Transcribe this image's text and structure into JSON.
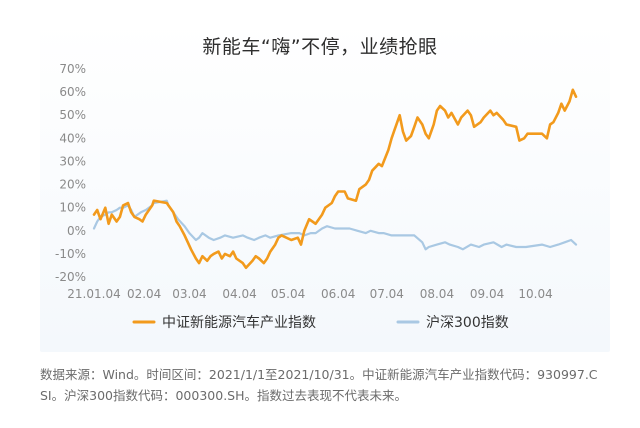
{
  "title": "新能车“嗨”不停，业绩抢眼",
  "source_note": "数据来源：Wind。时间区间：2021/1/1至2021/10/31。中证新能源汽车产业指数代码：930997.CSI。沪深300指数代码：000300.SH。指数过去表现不代表未来。",
  "colors": {
    "nev": "#f29a1c",
    "hs300": "#a9c8e3"
  },
  "chart_data": {
    "type": "line",
    "x_ticks": [
      "21.01.04",
      "02.04",
      "03.04",
      "04.04",
      "05.04",
      "06.04",
      "07.04",
      "08.04",
      "09.04",
      "10.04"
    ],
    "y_ticks": [
      "70%",
      "60%",
      "50%",
      "40%",
      "30%",
      "20%",
      "10%",
      "0%",
      "-10%",
      "-20%"
    ],
    "ylim": [
      -20,
      70
    ],
    "x_range": [
      "2021-01-04",
      "2021-10-29"
    ],
    "series": [
      {
        "name": "中证新能源汽车产业指数",
        "color": "#f29a1c",
        "points": [
          [
            "2021-01-04",
            7
          ],
          [
            "2021-01-06",
            9
          ],
          [
            "2021-01-08",
            5
          ],
          [
            "2021-01-11",
            10
          ],
          [
            "2021-01-13",
            3
          ],
          [
            "2021-01-15",
            7
          ],
          [
            "2021-01-18",
            4
          ],
          [
            "2021-01-20",
            6
          ],
          [
            "2021-01-22",
            11
          ],
          [
            "2021-01-25",
            12
          ],
          [
            "2021-01-27",
            8
          ],
          [
            "2021-01-29",
            6
          ],
          [
            "2021-02-01",
            5
          ],
          [
            "2021-02-03",
            4
          ],
          [
            "2021-02-05",
            7
          ],
          [
            "2021-02-09",
            11
          ],
          [
            "2021-02-10",
            13
          ],
          [
            "2021-02-18",
            12
          ],
          [
            "2021-02-19",
            11
          ],
          [
            "2021-02-22",
            8
          ],
          [
            "2021-02-24",
            4
          ],
          [
            "2021-02-26",
            2
          ],
          [
            "2021-03-01",
            -2
          ],
          [
            "2021-03-03",
            -5
          ],
          [
            "2021-03-05",
            -8
          ],
          [
            "2021-03-08",
            -12
          ],
          [
            "2021-03-10",
            -14
          ],
          [
            "2021-03-12",
            -11
          ],
          [
            "2021-03-15",
            -13
          ],
          [
            "2021-03-17",
            -11
          ],
          [
            "2021-03-19",
            -10
          ],
          [
            "2021-03-22",
            -9
          ],
          [
            "2021-03-24",
            -12
          ],
          [
            "2021-03-26",
            -10
          ],
          [
            "2021-03-29",
            -11
          ],
          [
            "2021-03-31",
            -9
          ],
          [
            "2021-04-02",
            -12
          ],
          [
            "2021-04-06",
            -14
          ],
          [
            "2021-04-08",
            -16
          ],
          [
            "2021-04-12",
            -13
          ],
          [
            "2021-04-14",
            -11
          ],
          [
            "2021-04-16",
            -12
          ],
          [
            "2021-04-19",
            -14
          ],
          [
            "2021-04-21",
            -12
          ],
          [
            "2021-04-23",
            -9
          ],
          [
            "2021-04-26",
            -6
          ],
          [
            "2021-04-28",
            -3
          ],
          [
            "2021-04-30",
            -2
          ],
          [
            "2021-05-06",
            -4
          ],
          [
            "2021-05-10",
            -3
          ],
          [
            "2021-05-12",
            -6
          ],
          [
            "2021-05-14",
            0
          ],
          [
            "2021-05-17",
            5
          ],
          [
            "2021-05-19",
            4
          ],
          [
            "2021-05-21",
            3
          ],
          [
            "2021-05-25",
            7
          ],
          [
            "2021-05-27",
            10
          ],
          [
            "2021-05-31",
            12
          ],
          [
            "2021-06-02",
            15
          ],
          [
            "2021-06-04",
            17
          ],
          [
            "2021-06-08",
            17
          ],
          [
            "2021-06-10",
            14
          ],
          [
            "2021-06-15",
            13
          ],
          [
            "2021-06-17",
            18
          ],
          [
            "2021-06-21",
            20
          ],
          [
            "2021-06-23",
            22
          ],
          [
            "2021-06-25",
            26
          ],
          [
            "2021-06-29",
            29
          ],
          [
            "2021-07-01",
            28
          ],
          [
            "2021-07-05",
            35
          ],
          [
            "2021-07-07",
            40
          ],
          [
            "2021-07-09",
            44
          ],
          [
            "2021-07-12",
            50
          ],
          [
            "2021-07-14",
            43
          ],
          [
            "2021-07-16",
            39
          ],
          [
            "2021-07-19",
            41
          ],
          [
            "2021-07-21",
            45
          ],
          [
            "2021-07-23",
            49
          ],
          [
            "2021-07-26",
            46
          ],
          [
            "2021-07-28",
            42
          ],
          [
            "2021-07-30",
            40
          ],
          [
            "2021-08-02",
            46
          ],
          [
            "2021-08-04",
            52
          ],
          [
            "2021-08-06",
            54
          ],
          [
            "2021-08-09",
            52
          ],
          [
            "2021-08-11",
            49
          ],
          [
            "2021-08-13",
            51
          ],
          [
            "2021-08-17",
            46
          ],
          [
            "2021-08-19",
            49
          ],
          [
            "2021-08-23",
            52
          ],
          [
            "2021-08-25",
            50
          ],
          [
            "2021-08-27",
            45
          ],
          [
            "2021-08-31",
            47
          ],
          [
            "2021-09-02",
            49
          ],
          [
            "2021-09-06",
            52
          ],
          [
            "2021-09-08",
            50
          ],
          [
            "2021-09-10",
            51
          ],
          [
            "2021-09-14",
            48
          ],
          [
            "2021-09-16",
            46
          ],
          [
            "2021-09-22",
            45
          ],
          [
            "2021-09-24",
            39
          ],
          [
            "2021-09-27",
            40
          ],
          [
            "2021-09-29",
            42
          ],
          [
            "2021-10-08",
            42
          ],
          [
            "2021-10-11",
            40
          ],
          [
            "2021-10-13",
            46
          ],
          [
            "2021-10-15",
            47
          ],
          [
            "2021-10-18",
            51
          ],
          [
            "2021-10-20",
            55
          ],
          [
            "2021-10-22",
            52
          ],
          [
            "2021-10-25",
            56
          ],
          [
            "2021-10-27",
            61
          ],
          [
            "2021-10-29",
            58
          ]
        ]
      },
      {
        "name": "沪深300指数",
        "color": "#a9c8e3",
        "points": [
          [
            "2021-01-04",
            1
          ],
          [
            "2021-01-06",
            4
          ],
          [
            "2021-01-08",
            6
          ],
          [
            "2021-01-11",
            7
          ],
          [
            "2021-01-13",
            8
          ],
          [
            "2021-01-15",
            8
          ],
          [
            "2021-01-18",
            9
          ],
          [
            "2021-01-20",
            10
          ],
          [
            "2021-01-22",
            10
          ],
          [
            "2021-01-25",
            11
          ],
          [
            "2021-01-27",
            9
          ],
          [
            "2021-01-29",
            6
          ],
          [
            "2021-02-02",
            8
          ],
          [
            "2021-02-05",
            9
          ],
          [
            "2021-02-09",
            11
          ],
          [
            "2021-02-10",
            12
          ],
          [
            "2021-02-18",
            13
          ],
          [
            "2021-02-19",
            11
          ],
          [
            "2021-02-22",
            8
          ],
          [
            "2021-02-25",
            5
          ],
          [
            "2021-03-01",
            2
          ],
          [
            "2021-03-04",
            -1
          ],
          [
            "2021-03-08",
            -4
          ],
          [
            "2021-03-10",
            -3
          ],
          [
            "2021-03-12",
            -1
          ],
          [
            "2021-03-16",
            -3
          ],
          [
            "2021-03-19",
            -4
          ],
          [
            "2021-03-23",
            -3
          ],
          [
            "2021-03-26",
            -2
          ],
          [
            "2021-03-31",
            -3
          ],
          [
            "2021-04-06",
            -2
          ],
          [
            "2021-04-09",
            -3
          ],
          [
            "2021-04-13",
            -4
          ],
          [
            "2021-04-16",
            -3
          ],
          [
            "2021-04-20",
            -2
          ],
          [
            "2021-04-23",
            -3
          ],
          [
            "2021-04-28",
            -2
          ],
          [
            "2021-05-06",
            -1
          ],
          [
            "2021-05-11",
            -1
          ],
          [
            "2021-05-14",
            -2
          ],
          [
            "2021-05-18",
            -1
          ],
          [
            "2021-05-21",
            -1
          ],
          [
            "2021-05-25",
            1
          ],
          [
            "2021-05-28",
            2
          ],
          [
            "2021-06-02",
            1
          ],
          [
            "2021-06-07",
            1
          ],
          [
            "2021-06-11",
            1
          ],
          [
            "2021-06-16",
            0
          ],
          [
            "2021-06-21",
            -1
          ],
          [
            "2021-06-24",
            0
          ],
          [
            "2021-06-29",
            -1
          ],
          [
            "2021-07-02",
            -1
          ],
          [
            "2021-07-07",
            -2
          ],
          [
            "2021-07-12",
            -2
          ],
          [
            "2021-07-16",
            -2
          ],
          [
            "2021-07-21",
            -2
          ],
          [
            "2021-07-26",
            -5
          ],
          [
            "2021-07-28",
            -8
          ],
          [
            "2021-07-30",
            -7
          ],
          [
            "2021-08-04",
            -6
          ],
          [
            "2021-08-09",
            -5
          ],
          [
            "2021-08-12",
            -6
          ],
          [
            "2021-08-17",
            -7
          ],
          [
            "2021-08-20",
            -8
          ],
          [
            "2021-08-25",
            -6
          ],
          [
            "2021-08-30",
            -7
          ],
          [
            "2021-09-02",
            -6
          ],
          [
            "2021-09-08",
            -5
          ],
          [
            "2021-09-13",
            -7
          ],
          [
            "2021-09-16",
            -6
          ],
          [
            "2021-09-22",
            -7
          ],
          [
            "2021-09-28",
            -7
          ],
          [
            "2021-10-08",
            -6
          ],
          [
            "2021-10-13",
            -7
          ],
          [
            "2021-10-18",
            -6
          ],
          [
            "2021-10-22",
            -5
          ],
          [
            "2021-10-26",
            -4
          ],
          [
            "2021-10-29",
            -6
          ]
        ]
      }
    ]
  }
}
